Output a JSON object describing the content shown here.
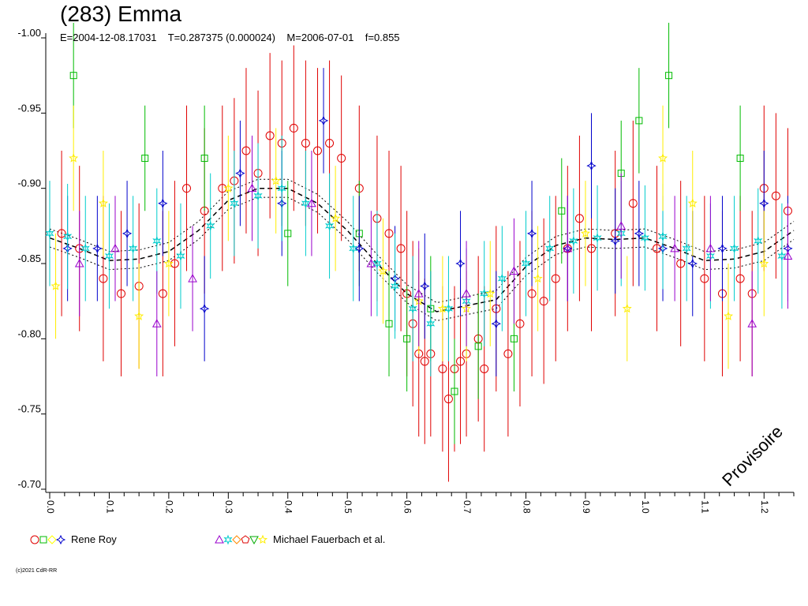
{
  "header": {
    "title": "(283) Emma",
    "subtitle": "E=2004-12-08.17031    T=0.287375 (0.000024)    M=2006-07-01    f=0.855"
  },
  "legend": [
    {
      "label": "Rene Roy",
      "markers": [
        "circle",
        "square",
        "diamond",
        "star4"
      ],
      "colors": [
        "#e00000",
        "#00bb00",
        "#ffff00",
        "#0000cc"
      ]
    },
    {
      "label": "Michael Fauerbach et al.",
      "markers": [
        "triangle",
        "star6",
        "diamond",
        "pentagon",
        "triangle-down",
        "star"
      ],
      "colors": [
        "#9900cc",
        "#00cccc",
        "#ff8800",
        "#dd0000",
        "#00aa00",
        "#ffee00"
      ]
    }
  ],
  "watermark": "Provisoire",
  "copyright": "(c)2021 CdR-RR",
  "colors": {
    "axis": "#000000",
    "background": "#ffffff"
  },
  "chart_data": {
    "type": "scatter",
    "title": "(283) Emma",
    "xlabel": "",
    "ylabel": "",
    "xlim": [
      0.0,
      1.25
    ],
    "ylim": [
      -1.0,
      -0.7
    ],
    "y_inverted": true,
    "x_ticks": [
      "0.0",
      "0.1",
      "0.2",
      "0.3",
      "0.4",
      "0.5",
      "0.6",
      "0.7",
      "0.8",
      "0.9",
      "1.0",
      "1.1",
      "1.2"
    ],
    "x_tick_values": [
      0.0,
      0.1,
      0.2,
      0.3,
      0.4,
      0.5,
      0.6,
      0.7,
      0.8,
      0.9,
      1.0,
      1.1,
      1.2
    ],
    "y_ticks": [
      "-1.00",
      "-0.95",
      "-0.90",
      "-0.85",
      "-0.80",
      "-0.75",
      "-0.70"
    ],
    "y_tick_values": [
      -1.0,
      -0.95,
      -0.9,
      -0.85,
      -0.8,
      -0.75,
      -0.7
    ],
    "grid": false,
    "fit_curve": {
      "x": [
        0.0,
        0.05,
        0.1,
        0.15,
        0.2,
        0.25,
        0.3,
        0.35,
        0.4,
        0.45,
        0.5,
        0.55,
        0.6,
        0.65,
        0.7,
        0.75,
        0.8,
        0.85,
        0.9,
        0.95,
        1.0,
        1.05,
        1.1,
        1.15,
        1.2,
        1.25
      ],
      "y": [
        -0.867,
        -0.86,
        -0.852,
        -0.853,
        -0.858,
        -0.872,
        -0.892,
        -0.9,
        -0.9,
        -0.89,
        -0.872,
        -0.85,
        -0.83,
        -0.818,
        -0.822,
        -0.826,
        -0.848,
        -0.862,
        -0.867,
        -0.866,
        -0.867,
        -0.86,
        -0.852,
        -0.853,
        -0.858,
        -0.872
      ]
    },
    "series": [
      {
        "name": "Rene Roy",
        "marker": "circle",
        "color": "#e00000",
        "x": [
          0.02,
          0.05,
          0.09,
          0.12,
          0.15,
          0.19,
          0.21,
          0.23,
          0.26,
          0.29,
          0.31,
          0.33,
          0.35,
          0.37,
          0.39,
          0.41,
          0.43,
          0.45,
          0.47,
          0.49,
          0.52,
          0.55,
          0.57,
          0.59,
          0.6,
          0.61,
          0.62,
          0.63,
          0.64,
          0.66,
          0.67,
          0.68,
          0.69,
          0.7,
          0.72,
          0.73,
          0.75,
          0.77,
          0.79,
          0.81,
          0.83,
          0.85,
          0.87,
          0.89,
          0.91,
          0.95,
          0.98,
          1.02,
          1.06,
          1.1,
          1.13,
          1.16,
          1.18,
          1.2,
          1.22,
          1.24
        ],
        "y": [
          -0.87,
          -0.86,
          -0.84,
          -0.83,
          -0.835,
          -0.83,
          -0.85,
          -0.9,
          -0.885,
          -0.9,
          -0.905,
          -0.925,
          -0.91,
          -0.935,
          -0.93,
          -0.94,
          -0.93,
          -0.925,
          -0.93,
          -0.92,
          -0.9,
          -0.88,
          -0.87,
          -0.86,
          -0.83,
          -0.81,
          -0.79,
          -0.785,
          -0.79,
          -0.78,
          -0.76,
          -0.78,
          -0.785,
          -0.79,
          -0.8,
          -0.78,
          -0.82,
          -0.79,
          -0.81,
          -0.83,
          -0.825,
          -0.84,
          -0.86,
          -0.88,
          -0.86,
          -0.87,
          -0.89,
          -0.86,
          -0.85,
          -0.84,
          -0.83,
          -0.84,
          -0.83,
          -0.9,
          -0.895,
          -0.885
        ]
      },
      {
        "name": "Rene Roy (2)",
        "marker": "square",
        "color": "#00bb00",
        "x": [
          0.04,
          0.16,
          0.26,
          0.4,
          0.52,
          0.57,
          0.6,
          0.64,
          0.68,
          0.72,
          0.78,
          0.86,
          0.96,
          0.99,
          1.04,
          1.16
        ],
        "y": [
          -0.975,
          -0.92,
          -0.92,
          -0.87,
          -0.87,
          -0.81,
          -0.8,
          -0.82,
          -0.765,
          -0.795,
          -0.8,
          -0.885,
          -0.91,
          -0.945,
          -0.975,
          -0.92
        ]
      },
      {
        "name": "Rene Roy (3)",
        "marker": "star4",
        "color": "#0000cc",
        "x": [
          0.03,
          0.08,
          0.13,
          0.19,
          0.26,
          0.32,
          0.39,
          0.46,
          0.52,
          0.58,
          0.63,
          0.69,
          0.75,
          0.81,
          0.87,
          0.91,
          0.95,
          0.99,
          1.03,
          1.08,
          1.13,
          1.2,
          1.24
        ],
        "y": [
          -0.86,
          -0.86,
          -0.87,
          -0.89,
          -0.82,
          -0.91,
          -0.89,
          -0.945,
          -0.86,
          -0.84,
          -0.835,
          -0.85,
          -0.81,
          -0.87,
          -0.86,
          -0.915,
          -0.865,
          -0.87,
          -0.86,
          -0.85,
          -0.86,
          -0.89,
          -0.86
        ]
      },
      {
        "name": "Michael Fauerbach et al.",
        "marker": "star6",
        "color": "#00cccc",
        "x": [
          0.0,
          0.03,
          0.06,
          0.1,
          0.14,
          0.18,
          0.22,
          0.27,
          0.31,
          0.35,
          0.39,
          0.43,
          0.47,
          0.51,
          0.55,
          0.58,
          0.61,
          0.64,
          0.67,
          0.7,
          0.73,
          0.76,
          0.8,
          0.84,
          0.88,
          0.92,
          0.96,
          1.0,
          1.03,
          1.07,
          1.11,
          1.15,
          1.19,
          1.23
        ],
        "y": [
          -0.87,
          -0.868,
          -0.86,
          -0.855,
          -0.86,
          -0.865,
          -0.855,
          -0.875,
          -0.89,
          -0.895,
          -0.9,
          -0.89,
          -0.875,
          -0.86,
          -0.85,
          -0.835,
          -0.82,
          -0.81,
          -0.82,
          -0.825,
          -0.83,
          -0.84,
          -0.85,
          -0.86,
          -0.865,
          -0.867,
          -0.87,
          -0.867,
          -0.868,
          -0.86,
          -0.855,
          -0.86,
          -0.865,
          -0.855
        ]
      },
      {
        "name": "Michael Fauerbach et al. (2)",
        "marker": "star",
        "color": "#ffee00",
        "x": [
          0.01,
          0.04,
          0.09,
          0.15,
          0.2,
          0.3,
          0.38,
          0.48,
          0.56,
          0.62,
          0.66,
          0.7,
          0.74,
          0.82,
          0.9,
          0.97,
          1.03,
          1.08,
          1.14,
          1.2
        ],
        "y": [
          -0.835,
          -0.92,
          -0.89,
          -0.815,
          -0.85,
          -0.9,
          -0.905,
          -0.88,
          -0.845,
          -0.825,
          -0.82,
          -0.82,
          -0.83,
          -0.84,
          -0.87,
          -0.82,
          -0.92,
          -0.89,
          -0.815,
          -0.85
        ]
      },
      {
        "name": "Michael Fauerbach et al. (3)",
        "marker": "triangle",
        "color": "#9900cc",
        "x": [
          0.05,
          0.11,
          0.18,
          0.24,
          0.34,
          0.44,
          0.54,
          0.62,
          0.7,
          0.78,
          0.87,
          0.96,
          1.05,
          1.11,
          1.18,
          1.24
        ],
        "y": [
          -0.85,
          -0.86,
          -0.81,
          -0.84,
          -0.9,
          -0.89,
          -0.85,
          -0.83,
          -0.83,
          -0.845,
          -0.86,
          -0.875,
          -0.86,
          -0.86,
          -0.81,
          -0.855
        ]
      }
    ]
  }
}
